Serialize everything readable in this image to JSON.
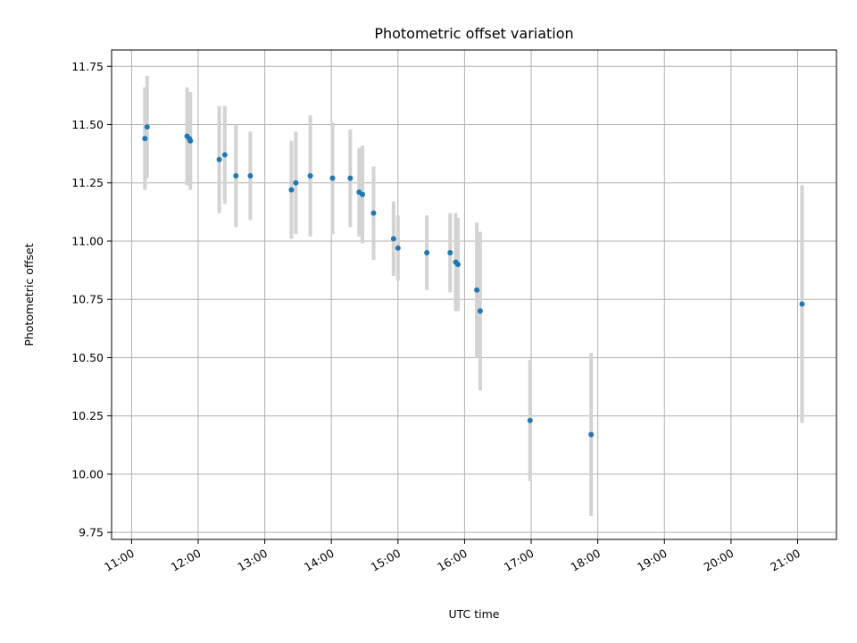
{
  "chart_data": {
    "type": "scatter",
    "title": "Photometric offset variation",
    "xlabel": "UTC time",
    "ylabel": "Photometric offset",
    "xlim": [
      "10:42",
      "21:35"
    ],
    "ylim": [
      9.72,
      11.82
    ],
    "grid": true,
    "x_ticks": [
      "11:00",
      "12:00",
      "13:00",
      "14:00",
      "15:00",
      "16:00",
      "17:00",
      "18:00",
      "19:00",
      "20:00",
      "21:00"
    ],
    "y_ticks": [
      "9.75",
      "10.00",
      "10.25",
      "10.50",
      "10.75",
      "11.00",
      "11.25",
      "11.50",
      "11.75"
    ],
    "colors": {
      "point": "#1f77b4",
      "errorbar": "#d3d3d3",
      "grid": "#b0b0b0"
    },
    "series": [
      {
        "points": [
          {
            "time": "11:12",
            "y": 11.44,
            "err": 0.22
          },
          {
            "time": "11:14",
            "y": 11.49,
            "err": 0.22
          },
          {
            "time": "11:50",
            "y": 11.45,
            "err": 0.21
          },
          {
            "time": "11:52",
            "y": 11.44,
            "err": 0.2
          },
          {
            "time": "11:53",
            "y": 11.43,
            "err": 0.21
          },
          {
            "time": "12:19",
            "y": 11.35,
            "err": 0.23
          },
          {
            "time": "12:24",
            "y": 11.37,
            "err": 0.21
          },
          {
            "time": "12:34",
            "y": 11.28,
            "err": 0.22
          },
          {
            "time": "12:47",
            "y": 11.28,
            "err": 0.19
          },
          {
            "time": "13:24",
            "y": 11.22,
            "err": 0.21
          },
          {
            "time": "13:28",
            "y": 11.25,
            "err": 0.22
          },
          {
            "time": "13:41",
            "y": 11.28,
            "err": 0.26
          },
          {
            "time": "14:01",
            "y": 11.27,
            "err": 0.24
          },
          {
            "time": "14:17",
            "y": 11.27,
            "err": 0.21
          },
          {
            "time": "14:25",
            "y": 11.21,
            "err": 0.19
          },
          {
            "time": "14:28",
            "y": 11.2,
            "err": 0.21
          },
          {
            "time": "14:38",
            "y": 11.12,
            "err": 0.2
          },
          {
            "time": "14:56",
            "y": 11.01,
            "err": 0.16
          },
          {
            "time": "15:00",
            "y": 10.97,
            "err": 0.14
          },
          {
            "time": "15:26",
            "y": 10.95,
            "err": 0.16
          },
          {
            "time": "15:47",
            "y": 10.95,
            "err": 0.17
          },
          {
            "time": "15:52",
            "y": 10.91,
            "err": 0.21
          },
          {
            "time": "15:54",
            "y": 10.9,
            "err": 0.2
          },
          {
            "time": "16:11",
            "y": 10.79,
            "err": 0.29
          },
          {
            "time": "16:14",
            "y": 10.7,
            "err": 0.34
          },
          {
            "time": "16:59",
            "y": 10.23,
            "err": 0.26
          },
          {
            "time": "17:54",
            "y": 10.17,
            "err": 0.35
          },
          {
            "time": "21:04",
            "y": 10.73,
            "err": 0.51
          }
        ]
      }
    ]
  }
}
